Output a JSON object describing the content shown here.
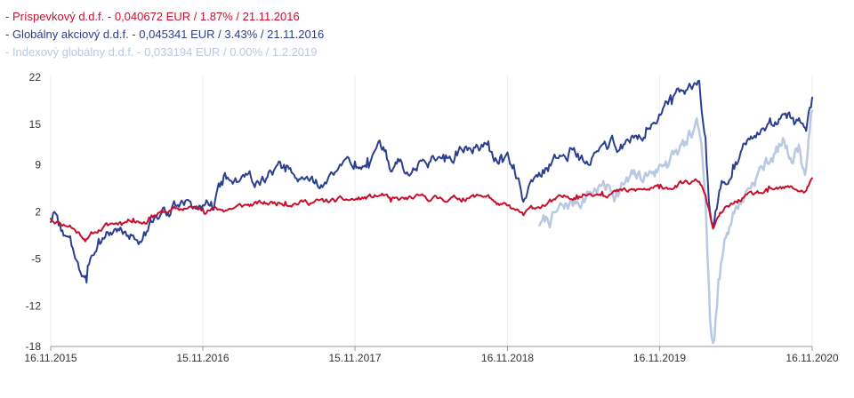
{
  "legend": [
    {
      "label": "- Príspevkový d.d.f. - 0,040672 EUR / 1.87% / 21.11.2016",
      "color": "#c8102e"
    },
    {
      "label": "- Globálny akciový d.d.f. - 0,045341 EUR / 3.43% / 21.11.2016",
      "color": "#2b3f8e"
    },
    {
      "label": "- Indexový globálny d.d.f. - 0,033194 EUR / 0.00% / 1.2.2019",
      "color": "#b9c9e3"
    }
  ],
  "chart_data": {
    "type": "line",
    "title": "",
    "xlabel": "",
    "ylabel": "",
    "ylim": [
      -18,
      22
    ],
    "yticks": [
      22,
      15,
      9,
      2,
      -5,
      -12,
      -18
    ],
    "xlim": [
      "2015-11-16",
      "2020-11-16"
    ],
    "xticks": [
      "16.11.2015",
      "15.11.2016",
      "15.11.2017",
      "16.11.2018",
      "16.11.2019",
      "16.11.2020"
    ],
    "grid": "vertical",
    "legend_position": "top-left",
    "series": [
      {
        "name": "Globálny akciový d.d.f.",
        "color": "#2b3f8e",
        "points": [
          [
            "2015-11-16",
            0.5
          ],
          [
            "2015-11-25",
            2.0
          ],
          [
            "2015-12-05",
            0.0
          ],
          [
            "2015-12-20",
            -1.5
          ],
          [
            "2016-01-05",
            -3.0
          ],
          [
            "2016-01-20",
            -5.5
          ],
          [
            "2016-02-02",
            -7.5
          ],
          [
            "2016-02-10",
            -8.5
          ],
          [
            "2016-02-22",
            -4.5
          ],
          [
            "2016-03-10",
            -2.0
          ],
          [
            "2016-04-01",
            -1.0
          ],
          [
            "2016-04-20",
            -0.5
          ],
          [
            "2016-05-10",
            -1.0
          ],
          [
            "2016-06-01",
            -1.5
          ],
          [
            "2016-06-20",
            -2.5
          ],
          [
            "2016-06-27",
            -1.0
          ],
          [
            "2016-07-15",
            0.5
          ],
          [
            "2016-08-05",
            1.5
          ],
          [
            "2016-09-01",
            2.5
          ],
          [
            "2016-10-01",
            3.0
          ],
          [
            "2016-11-01",
            2.5
          ],
          [
            "2016-11-15",
            3.0
          ],
          [
            "2016-12-05",
            3.5
          ],
          [
            "2017-01-01",
            6.0
          ],
          [
            "2017-02-01",
            7.0
          ],
          [
            "2017-03-01",
            7.5
          ],
          [
            "2017-04-01",
            6.0
          ],
          [
            "2017-05-01",
            7.5
          ],
          [
            "2017-06-01",
            8.0
          ],
          [
            "2017-07-01",
            6.5
          ],
          [
            "2017-08-01",
            7.0
          ],
          [
            "2017-09-01",
            6.0
          ],
          [
            "2017-10-01",
            8.0
          ],
          [
            "2017-11-15",
            9.5
          ],
          [
            "2017-12-15",
            10.0
          ],
          [
            "2018-01-25",
            11.0
          ],
          [
            "2018-02-09",
            8.0
          ],
          [
            "2018-03-01",
            9.5
          ],
          [
            "2018-03-23",
            7.5
          ],
          [
            "2018-04-15",
            9.0
          ],
          [
            "2018-05-15",
            9.5
          ],
          [
            "2018-06-15",
            10.5
          ],
          [
            "2018-07-15",
            11.0
          ],
          [
            "2018-08-15",
            11.5
          ],
          [
            "2018-09-15",
            12.0
          ],
          [
            "2018-10-01",
            12.5
          ],
          [
            "2018-10-15",
            9.5
          ],
          [
            "2018-11-01",
            10.5
          ],
          [
            "2018-12-01",
            9.0
          ],
          [
            "2018-12-24",
            3.5
          ],
          [
            "2019-01-15",
            6.5
          ],
          [
            "2019-02-15",
            8.5
          ],
          [
            "2019-03-15",
            10.0
          ],
          [
            "2019-04-15",
            11.5
          ],
          [
            "2019-05-10",
            10.0
          ],
          [
            "2019-06-03",
            9.0
          ],
          [
            "2019-07-01",
            12.0
          ],
          [
            "2019-08-15",
            12.0
          ],
          [
            "2019-09-15",
            13.0
          ],
          [
            "2019-10-15",
            14.5
          ],
          [
            "2019-11-15",
            16.5
          ],
          [
            "2019-12-15",
            18.0
          ],
          [
            "2020-01-15",
            19.5
          ],
          [
            "2020-02-19",
            21.5
          ],
          [
            "2020-03-05",
            13.0
          ],
          [
            "2020-03-16",
            2.0
          ],
          [
            "2020-03-23",
            0.0
          ],
          [
            "2020-04-10",
            5.5
          ],
          [
            "2020-05-10",
            9.0
          ],
          [
            "2020-06-10",
            12.0
          ],
          [
            "2020-07-10",
            13.5
          ],
          [
            "2020-08-10",
            15.0
          ],
          [
            "2020-09-10",
            16.5
          ],
          [
            "2020-10-01",
            16.0
          ],
          [
            "2020-10-30",
            14.5
          ],
          [
            "2020-11-10",
            17.5
          ],
          [
            "2020-11-16",
            19.0
          ]
        ]
      },
      {
        "name": "Príspevkový d.d.f.",
        "color": "#c8102e",
        "points": [
          [
            "2015-11-16",
            1.0
          ],
          [
            "2015-12-05",
            0.5
          ],
          [
            "2016-01-01",
            0.0
          ],
          [
            "2016-01-20",
            -1.0
          ],
          [
            "2016-02-10",
            -2.0
          ],
          [
            "2016-03-01",
            -1.0
          ],
          [
            "2016-04-01",
            0.0
          ],
          [
            "2016-05-01",
            0.5
          ],
          [
            "2016-06-01",
            1.0
          ],
          [
            "2016-06-27",
            0.5
          ],
          [
            "2016-07-15",
            1.5
          ],
          [
            "2016-08-15",
            2.0
          ],
          [
            "2016-10-01",
            2.5
          ],
          [
            "2016-11-15",
            2.5
          ],
          [
            "2017-01-01",
            2.3
          ],
          [
            "2017-03-01",
            3.0
          ],
          [
            "2017-06-01",
            3.5
          ],
          [
            "2017-09-01",
            3.5
          ],
          [
            "2017-11-15",
            3.8
          ],
          [
            "2018-01-25",
            4.5
          ],
          [
            "2018-02-09",
            3.5
          ],
          [
            "2018-04-01",
            4.0
          ],
          [
            "2018-06-01",
            4.0
          ],
          [
            "2018-08-01",
            4.0
          ],
          [
            "2018-10-01",
            4.5
          ],
          [
            "2018-10-15",
            3.5
          ],
          [
            "2018-12-24",
            1.5
          ],
          [
            "2019-01-15",
            2.5
          ],
          [
            "2019-03-01",
            3.5
          ],
          [
            "2019-05-01",
            4.5
          ],
          [
            "2019-07-01",
            5.0
          ],
          [
            "2019-09-01",
            5.0
          ],
          [
            "2019-11-15",
            5.5
          ],
          [
            "2020-02-19",
            6.5
          ],
          [
            "2020-03-05",
            4.5
          ],
          [
            "2020-03-23",
            -0.5
          ],
          [
            "2020-04-15",
            2.0
          ],
          [
            "2020-06-01",
            4.0
          ],
          [
            "2020-08-01",
            5.0
          ],
          [
            "2020-10-01",
            5.5
          ],
          [
            "2020-10-30",
            5.0
          ],
          [
            "2020-11-16",
            7.0
          ]
        ]
      },
      {
        "name": "Indexový globálny d.d.f.",
        "color": "#b9c9e3",
        "points": [
          [
            "2019-02-01",
            0.0
          ],
          [
            "2019-03-01",
            1.0
          ],
          [
            "2019-04-01",
            2.5
          ],
          [
            "2019-05-01",
            3.5
          ],
          [
            "2019-06-01",
            5.0
          ],
          [
            "2019-07-01",
            6.0
          ],
          [
            "2019-08-05",
            5.0
          ],
          [
            "2019-09-01",
            6.5
          ],
          [
            "2019-10-01",
            7.0
          ],
          [
            "2019-11-01",
            8.0
          ],
          [
            "2019-12-01",
            9.5
          ],
          [
            "2020-01-01",
            11.0
          ],
          [
            "2020-01-20",
            12.0
          ],
          [
            "2020-02-19",
            14.0
          ],
          [
            "2020-03-01",
            7.0
          ],
          [
            "2020-03-10",
            -5.0
          ],
          [
            "2020-03-16",
            -14.0
          ],
          [
            "2020-03-23",
            -17.5
          ],
          [
            "2020-04-05",
            -8.0
          ],
          [
            "2020-04-20",
            -2.0
          ],
          [
            "2020-05-10",
            2.0
          ],
          [
            "2020-06-10",
            5.0
          ],
          [
            "2020-07-10",
            8.0
          ],
          [
            "2020-08-10",
            10.0
          ],
          [
            "2020-09-10",
            12.5
          ],
          [
            "2020-09-25",
            10.0
          ],
          [
            "2020-10-15",
            12.0
          ],
          [
            "2020-10-30",
            7.5
          ],
          [
            "2020-11-10",
            14.0
          ],
          [
            "2020-11-16",
            17.0
          ]
        ]
      }
    ]
  }
}
